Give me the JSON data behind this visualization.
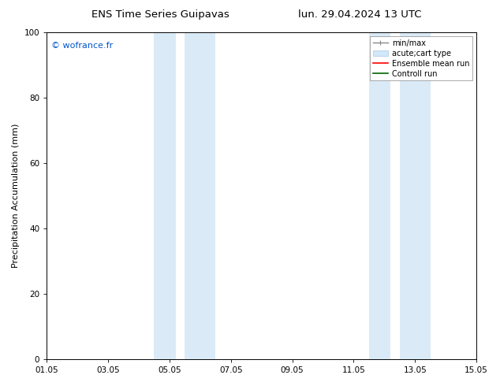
{
  "title_left": "ENS Time Series Guipavas",
  "title_right": "lun. 29.04.2024 13 UTC",
  "ylabel": "Precipitation Accumulation (mm)",
  "watermark": "© wofrance.fr",
  "watermark_color": "#0055cc",
  "ylim": [
    0,
    100
  ],
  "yticks": [
    0,
    20,
    40,
    60,
    80,
    100
  ],
  "xtick_labels": [
    "01.05",
    "03.05",
    "05.05",
    "07.05",
    "09.05",
    "11.05",
    "13.05",
    "15.05"
  ],
  "xlim_start": 0.0,
  "xlim_end": 14.0,
  "xtick_positions": [
    0.0,
    2.0,
    4.0,
    6.0,
    8.0,
    10.0,
    12.0,
    14.0
  ],
  "shaded_bands": [
    {
      "x_start": 3.5,
      "x_end": 4.2,
      "color": "#daeaf7"
    },
    {
      "x_start": 4.5,
      "x_end": 5.5,
      "color": "#daeaf7"
    },
    {
      "x_start": 10.5,
      "x_end": 11.2,
      "color": "#daeaf7"
    },
    {
      "x_start": 11.5,
      "x_end": 12.5,
      "color": "#daeaf7"
    }
  ],
  "legend_entries": [
    {
      "label": "min/max",
      "color": "#aaaaaa",
      "lw": 1.2
    },
    {
      "label": "acute;cart type",
      "color": "#ccddee",
      "lw": 7
    },
    {
      "label": "Ensemble mean run",
      "color": "red",
      "lw": 1.2
    },
    {
      "label": "Controll run",
      "color": "darkgreen",
      "lw": 1.2
    }
  ],
  "background_color": "#ffffff",
  "spine_color": "#000000",
  "title_fontsize": 9.5,
  "axis_fontsize": 8,
  "tick_fontsize": 7.5,
  "legend_fontsize": 7,
  "watermark_fontsize": 8
}
